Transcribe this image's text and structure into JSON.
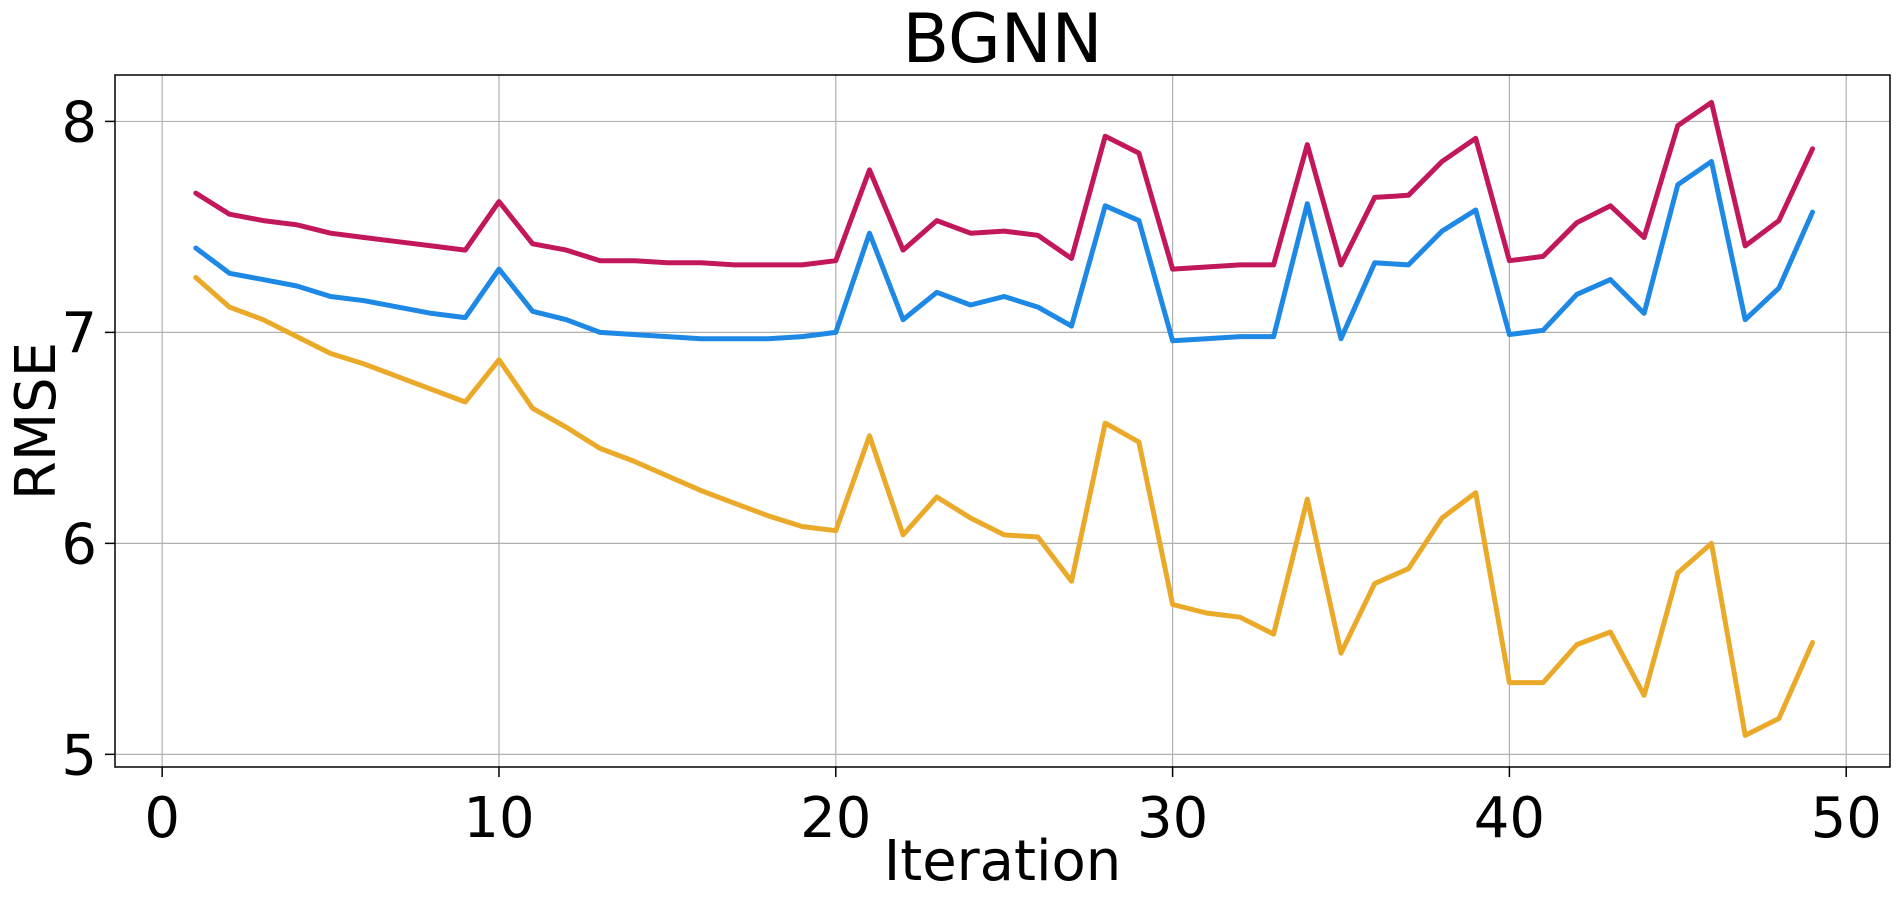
{
  "chart_data": {
    "type": "line",
    "title": "BGNN",
    "xlabel": "Iteration",
    "ylabel": "RMSE",
    "xlim": [
      -1.4,
      51.3
    ],
    "ylim": [
      4.94,
      8.22
    ],
    "xticks": [
      0,
      10,
      20,
      30,
      40,
      50
    ],
    "yticks": [
      5,
      6,
      7,
      8
    ],
    "grid": true,
    "x": [
      1,
      2,
      3,
      4,
      5,
      6,
      7,
      8,
      9,
      10,
      11,
      12,
      13,
      14,
      15,
      16,
      17,
      18,
      19,
      20,
      21,
      22,
      23,
      24,
      25,
      26,
      27,
      28,
      29,
      30,
      31,
      32,
      33,
      34,
      35,
      36,
      37,
      38,
      39,
      40,
      41,
      42,
      43,
      44,
      45,
      46,
      47,
      48,
      49
    ],
    "series": [
      {
        "color": "#c2185b",
        "values": [
          7.66,
          7.56,
          7.53,
          7.51,
          7.47,
          7.45,
          7.43,
          7.41,
          7.39,
          7.62,
          7.42,
          7.39,
          7.34,
          7.34,
          7.33,
          7.33,
          7.32,
          7.32,
          7.32,
          7.34,
          7.77,
          7.39,
          7.53,
          7.47,
          7.48,
          7.46,
          7.35,
          7.93,
          7.85,
          7.3,
          7.31,
          7.32,
          7.32,
          7.89,
          7.32,
          7.64,
          7.65,
          7.81,
          7.92,
          7.34,
          7.36,
          7.52,
          7.6,
          7.45,
          7.98,
          8.09,
          7.41,
          7.53,
          7.87
        ]
      },
      {
        "color": "#1e88e5",
        "values": [
          7.4,
          7.28,
          7.25,
          7.22,
          7.17,
          7.15,
          7.12,
          7.09,
          7.07,
          7.3,
          7.1,
          7.06,
          7.0,
          6.99,
          6.98,
          6.97,
          6.97,
          6.97,
          6.98,
          7.0,
          7.47,
          7.06,
          7.19,
          7.13,
          7.17,
          7.12,
          7.03,
          7.6,
          7.53,
          6.96,
          6.97,
          6.98,
          6.98,
          7.61,
          6.97,
          7.33,
          7.32,
          7.48,
          7.58,
          6.99,
          7.01,
          7.18,
          7.25,
          7.09,
          7.7,
          7.81,
          7.06,
          7.21,
          7.57
        ]
      },
      {
        "color": "#eba92a",
        "values": [
          7.26,
          7.12,
          7.06,
          6.98,
          6.9,
          6.85,
          6.79,
          6.73,
          6.67,
          6.87,
          6.64,
          6.55,
          6.45,
          6.39,
          6.32,
          6.25,
          6.19,
          6.13,
          6.08,
          6.06,
          6.51,
          6.04,
          6.22,
          6.12,
          6.04,
          6.03,
          5.82,
          6.57,
          6.48,
          5.71,
          5.67,
          5.65,
          5.57,
          6.21,
          5.48,
          5.81,
          5.88,
          6.12,
          6.24,
          5.34,
          5.34,
          5.52,
          5.58,
          5.28,
          5.86,
          6.0,
          5.09,
          5.17,
          5.53
        ]
      }
    ]
  }
}
